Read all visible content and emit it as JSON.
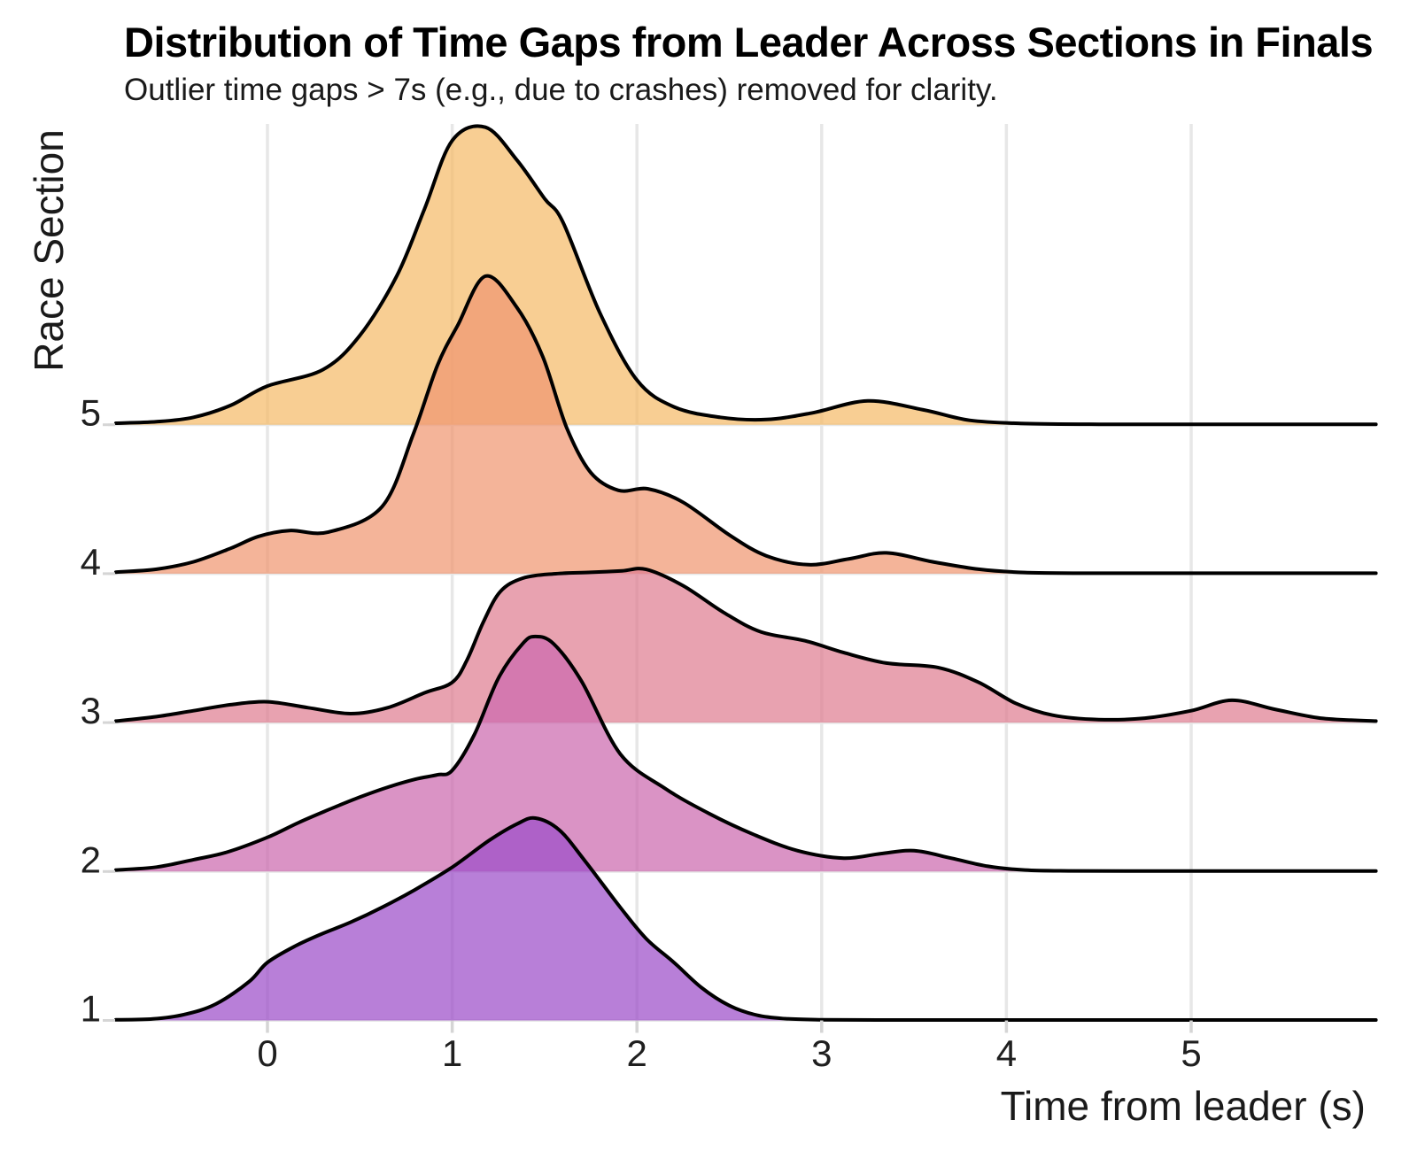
{
  "chart_data": {
    "type": "ridgeline-density",
    "title": "Distribution of Time Gaps from Leader Across Sections in Finals",
    "subtitle": "Outlier time gaps > 7s (e.g., due to crashes) removed for clarity.",
    "xlabel": "Time from leader (s)",
    "ylabel": "Race Section",
    "x_ticks": [
      "0",
      "1",
      "2",
      "3",
      "4",
      "5"
    ],
    "x_tick_values": [
      0,
      1,
      2,
      3,
      4,
      5
    ],
    "x_range": [
      -0.82,
      6.0
    ],
    "grid": true,
    "legend": "none",
    "outline_color": "#000000",
    "grid_color": "#E7E7E7",
    "tick_color": "#D5D5D5",
    "fill_opacity": 0.72,
    "sections": [
      {
        "label": "5",
        "fill": "#F5BB69",
        "density": [
          [
            -0.82,
            0.01
          ],
          [
            -0.6,
            0.02
          ],
          [
            -0.4,
            0.05
          ],
          [
            -0.2,
            0.13
          ],
          [
            0,
            0.26
          ],
          [
            0.3,
            0.37
          ],
          [
            0.5,
            0.6
          ],
          [
            0.7,
            1.0
          ],
          [
            0.85,
            1.45
          ],
          [
            1.0,
            1.91
          ],
          [
            1.18,
            2.0
          ],
          [
            1.35,
            1.78
          ],
          [
            1.5,
            1.52
          ],
          [
            1.6,
            1.36
          ],
          [
            1.8,
            0.75
          ],
          [
            2.0,
            0.3
          ],
          [
            2.2,
            0.12
          ],
          [
            2.45,
            0.05
          ],
          [
            2.7,
            0.035
          ],
          [
            2.95,
            0.08
          ],
          [
            3.25,
            0.16
          ],
          [
            3.55,
            0.1
          ],
          [
            3.8,
            0.03
          ],
          [
            4.1,
            0.008
          ],
          [
            4.5,
            0.003
          ],
          [
            5.0,
            0.003
          ],
          [
            5.5,
            0.003
          ],
          [
            6.0,
            0.003
          ]
        ]
      },
      {
        "label": "4",
        "fill": "#F09771",
        "density": [
          [
            -0.82,
            0.01
          ],
          [
            -0.6,
            0.03
          ],
          [
            -0.4,
            0.08
          ],
          [
            -0.2,
            0.17
          ],
          [
            -0.05,
            0.25
          ],
          [
            0.12,
            0.29
          ],
          [
            0.33,
            0.28
          ],
          [
            0.62,
            0.45
          ],
          [
            0.79,
            0.94
          ],
          [
            0.92,
            1.4
          ],
          [
            1.03,
            1.67
          ],
          [
            1.18,
            2.0
          ],
          [
            1.35,
            1.79
          ],
          [
            1.49,
            1.46
          ],
          [
            1.62,
            0.98
          ],
          [
            1.75,
            0.68
          ],
          [
            1.9,
            0.56
          ],
          [
            2.06,
            0.57
          ],
          [
            2.25,
            0.48
          ],
          [
            2.5,
            0.26
          ],
          [
            2.7,
            0.12
          ],
          [
            2.93,
            0.06
          ],
          [
            3.15,
            0.1
          ],
          [
            3.35,
            0.14
          ],
          [
            3.6,
            0.08
          ],
          [
            3.85,
            0.03
          ],
          [
            4.1,
            0.008
          ],
          [
            4.5,
            0.003
          ],
          [
            5.0,
            0.003
          ],
          [
            5.5,
            0.003
          ],
          [
            6.0,
            0.003
          ]
        ]
      },
      {
        "label": "3",
        "fill": "#DF7E91",
        "density": [
          [
            -0.82,
            0.01
          ],
          [
            -0.6,
            0.04
          ],
          [
            -0.4,
            0.08
          ],
          [
            -0.2,
            0.12
          ],
          [
            0,
            0.14
          ],
          [
            0.22,
            0.1
          ],
          [
            0.45,
            0.06
          ],
          [
            0.65,
            0.1
          ],
          [
            0.85,
            0.2
          ],
          [
            1.0,
            0.27
          ],
          [
            1.08,
            0.42
          ],
          [
            1.17,
            0.68
          ],
          [
            1.26,
            0.88
          ],
          [
            1.38,
            0.97
          ],
          [
            1.55,
            1.0
          ],
          [
            1.75,
            1.01
          ],
          [
            1.92,
            1.02
          ],
          [
            2.05,
            1.03
          ],
          [
            2.25,
            0.92
          ],
          [
            2.47,
            0.74
          ],
          [
            2.67,
            0.61
          ],
          [
            2.91,
            0.55
          ],
          [
            3.12,
            0.47
          ],
          [
            3.35,
            0.4
          ],
          [
            3.63,
            0.37
          ],
          [
            3.85,
            0.27
          ],
          [
            4.05,
            0.13
          ],
          [
            4.25,
            0.05
          ],
          [
            4.5,
            0.02
          ],
          [
            4.75,
            0.03
          ],
          [
            5.0,
            0.08
          ],
          [
            5.22,
            0.15
          ],
          [
            5.45,
            0.09
          ],
          [
            5.7,
            0.03
          ],
          [
            6.0,
            0.01
          ]
        ]
      },
      {
        "label": "2",
        "fill": "#CC69AF",
        "density": [
          [
            -0.82,
            0.01
          ],
          [
            -0.6,
            0.03
          ],
          [
            -0.4,
            0.08
          ],
          [
            -0.22,
            0.13
          ],
          [
            0,
            0.23
          ],
          [
            0.17,
            0.33
          ],
          [
            0.34,
            0.42
          ],
          [
            0.5,
            0.5
          ],
          [
            0.66,
            0.57
          ],
          [
            0.8,
            0.62
          ],
          [
            0.92,
            0.65
          ],
          [
            1.0,
            0.68
          ],
          [
            1.12,
            0.92
          ],
          [
            1.25,
            1.3
          ],
          [
            1.38,
            1.53
          ],
          [
            1.45,
            1.58
          ],
          [
            1.55,
            1.53
          ],
          [
            1.7,
            1.28
          ],
          [
            1.91,
            0.79
          ],
          [
            2.15,
            0.56
          ],
          [
            2.39,
            0.39
          ],
          [
            2.63,
            0.25
          ],
          [
            2.87,
            0.14
          ],
          [
            3.12,
            0.09
          ],
          [
            3.32,
            0.12
          ],
          [
            3.5,
            0.14
          ],
          [
            3.7,
            0.09
          ],
          [
            3.9,
            0.035
          ],
          [
            4.1,
            0.01
          ],
          [
            4.35,
            0.004
          ],
          [
            4.7,
            0.003
          ],
          [
            5.1,
            0.003
          ],
          [
            5.5,
            0.003
          ],
          [
            6.0,
            0.003
          ]
        ]
      },
      {
        "label": "1",
        "fill": "#9C4DC9",
        "density": [
          [
            -0.82,
            0.004
          ],
          [
            -0.62,
            0.01
          ],
          [
            -0.45,
            0.04
          ],
          [
            -0.28,
            0.11
          ],
          [
            -0.1,
            0.26
          ],
          [
            0,
            0.39
          ],
          [
            0.15,
            0.5
          ],
          [
            0.29,
            0.58
          ],
          [
            0.45,
            0.66
          ],
          [
            0.62,
            0.76
          ],
          [
            0.8,
            0.88
          ],
          [
            1.0,
            1.03
          ],
          [
            1.2,
            1.21
          ],
          [
            1.35,
            1.32
          ],
          [
            1.45,
            1.36
          ],
          [
            1.58,
            1.28
          ],
          [
            1.72,
            1.07
          ],
          [
            1.91,
            0.76
          ],
          [
            2.05,
            0.55
          ],
          [
            2.2,
            0.39
          ],
          [
            2.35,
            0.22
          ],
          [
            2.5,
            0.1
          ],
          [
            2.65,
            0.035
          ],
          [
            2.8,
            0.012
          ],
          [
            3.0,
            0.005
          ],
          [
            3.3,
            0.003
          ],
          [
            3.7,
            0.003
          ],
          [
            4.1,
            0.003
          ],
          [
            4.5,
            0.003
          ],
          [
            5.0,
            0.003
          ],
          [
            5.5,
            0.003
          ],
          [
            6.0,
            0.003
          ]
        ]
      }
    ]
  }
}
